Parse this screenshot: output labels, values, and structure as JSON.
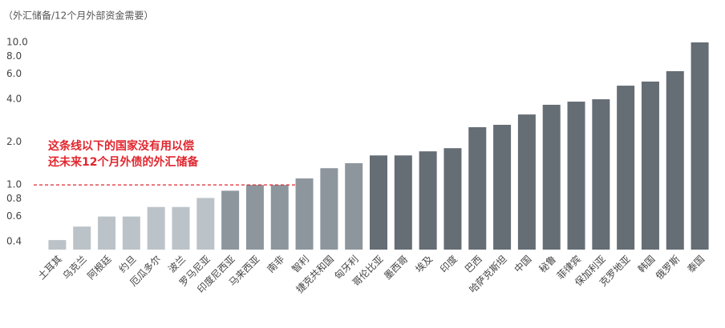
{
  "chart_data": {
    "type": "bar",
    "title": "（外汇储备/12个月外部资金需要）",
    "annotation": [
      "这条线以下的国家没有用以偿",
      "还未来12个月外债的外汇储备"
    ],
    "threshold": 1,
    "threshold_color": "#e0262e",
    "log_scale": true,
    "ylim": [
      0.4,
      10
    ],
    "yticks": [
      0.4,
      0.6,
      0.8,
      {
        "value": 1,
        "label": "1.0"
      },
      {
        "value": 2,
        "label": "2.0"
      },
      {
        "value": 4,
        "label": "4.0"
      },
      {
        "value": 6,
        "label": "6.0"
      },
      {
        "value": 8,
        "label": "8.0"
      },
      {
        "value": 10,
        "label": "10.0"
      }
    ],
    "categories": [
      "土耳其",
      "乌克兰",
      "阿根廷",
      "约旦",
      "厄瓜多尔",
      "波兰",
      "罗马尼亚",
      "印度尼西亚",
      "马来西亚",
      "南非",
      "智利",
      "捷克共和国",
      "匈牙利",
      "哥伦比亚",
      "墨西哥",
      "埃及",
      "印度",
      "巴西",
      "哈萨克斯坦",
      "中国",
      "秘鲁",
      "菲律宾",
      "保加利亚",
      "克罗地亚",
      "韩国",
      "俄罗斯",
      "泰国"
    ],
    "values": [
      0.41,
      0.51,
      0.6,
      0.6,
      0.7,
      0.7,
      0.81,
      0.91,
      1.0,
      1.0,
      1.11,
      1.31,
      1.42,
      1.61,
      1.61,
      1.72,
      1.81,
      2.54,
      2.64,
      3.12,
      3.65,
      3.84,
      3.99,
      4.97,
      5.31,
      6.28,
      10.0
    ],
    "colors": [
      "#bcc3c8",
      "#bcc3c8",
      "#bcc3c8",
      "#bcc3c8",
      "#bcc3c8",
      "#bcc3c8",
      "#bcc3c8",
      "#8e969d",
      "#8e969d",
      "#8e969d",
      "#8e969d",
      "#8e969d",
      "#8e969d",
      "#656d75",
      "#656d75",
      "#656d75",
      "#656d75",
      "#656d75",
      "#656d75",
      "#656d75",
      "#656d75",
      "#656d75",
      "#656d75",
      "#656d75",
      "#656d75",
      "#656d75",
      "#656d75"
    ]
  }
}
